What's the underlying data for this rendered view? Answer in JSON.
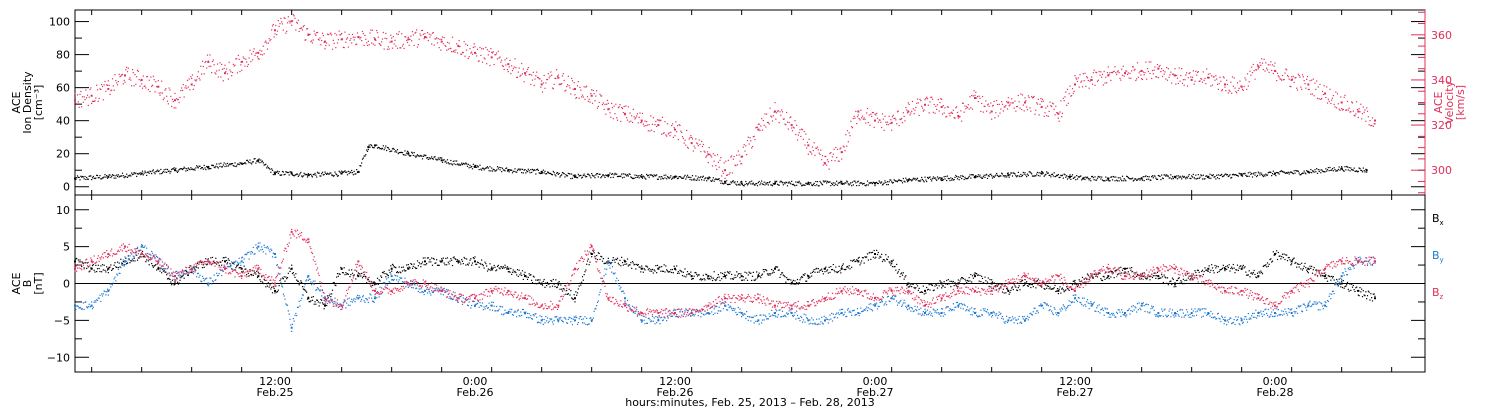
{
  "figure": {
    "xlabel": "hours:minutes, Feb. 25, 2013 – Feb. 28, 2013",
    "x_range_hours": [
      0,
      81
    ],
    "x_ticks": [
      {
        "hours": 12,
        "time": "12:00",
        "date": "Feb.25"
      },
      {
        "hours": 24,
        "time": "0:00",
        "date": "Feb.26"
      },
      {
        "hours": 36,
        "time": "12:00",
        "date": "Feb.26"
      },
      {
        "hours": 48,
        "time": "0:00",
        "date": "Feb.27"
      },
      {
        "hours": 60,
        "time": "12:00",
        "date": "Feb.27"
      },
      {
        "hours": 72,
        "time": "0:00",
        "date": "Feb.28"
      }
    ]
  },
  "chart_data": [
    {
      "type": "scatter",
      "panel": "plasma",
      "ylabel_lines": [
        "ACE",
        "Ion Density",
        "[cm⁻³]"
      ],
      "y2label_lines": [
        "ACE",
        "Velocity",
        "[km/s]"
      ],
      "ylim": [
        -5,
        107
      ],
      "yticks": [
        0,
        20,
        40,
        60,
        80,
        100
      ],
      "y2lim": [
        289,
        371
      ],
      "y2ticks": [
        300,
        320,
        340,
        360
      ],
      "series": [
        {
          "name": "Ion Density",
          "axis": "left",
          "color": "#000000",
          "x": [
            0,
            2,
            4,
            6,
            8,
            10,
            11,
            12,
            13,
            14,
            16,
            17,
            17.6,
            18,
            20,
            22,
            24,
            26,
            28,
            30,
            32,
            34,
            36,
            38,
            39,
            40,
            42,
            44,
            46,
            48,
            50,
            52,
            54,
            56,
            58,
            59.7,
            60.5,
            62,
            64,
            66,
            68,
            70,
            72,
            74,
            76,
            77.5
          ],
          "values": [
            5,
            6,
            8,
            10,
            12,
            14,
            16,
            8,
            8,
            7,
            8,
            9,
            24,
            25,
            20,
            16,
            12,
            10,
            9,
            6,
            7,
            6,
            6,
            5,
            3,
            2,
            2,
            2,
            2,
            2,
            4,
            5,
            6,
            7,
            8,
            6,
            5,
            5,
            5,
            6,
            6,
            7,
            8,
            9,
            11,
            10
          ]
        },
        {
          "name": "Velocity",
          "axis": "right",
          "color": "#e0305a",
          "x": [
            0,
            1,
            2,
            3,
            4,
            5,
            6,
            7,
            8,
            9,
            10,
            11,
            12,
            13,
            14,
            15,
            16,
            17,
            18,
            19,
            20,
            21,
            22,
            23,
            24,
            25,
            26,
            27,
            28,
            29,
            30,
            31,
            32,
            33,
            34,
            35,
            36,
            37,
            38,
            39,
            40,
            41,
            42,
            43,
            44,
            45,
            46,
            47,
            48,
            49,
            50,
            51,
            52,
            53,
            54,
            55,
            56,
            57,
            58,
            59,
            60,
            61,
            62,
            63,
            64,
            65,
            66,
            67,
            68,
            69,
            70,
            71,
            72,
            73,
            74,
            75,
            76,
            77,
            78
          ],
          "values": [
            331,
            333,
            336,
            342,
            340,
            337,
            331,
            338,
            348,
            343,
            348,
            352,
            362,
            366,
            360,
            357,
            358,
            359,
            358,
            357,
            358,
            359,
            357,
            355,
            352,
            350,
            347,
            343,
            338,
            341,
            336,
            333,
            327,
            325,
            322,
            320,
            318,
            312,
            307,
            300,
            306,
            318,
            326,
            320,
            311,
            303,
            308,
            326,
            322,
            321,
            326,
            329,
            328,
            324,
            332,
            326,
            330,
            330,
            328,
            325,
            338,
            340,
            342,
            343,
            344,
            345,
            342,
            340,
            341,
            338,
            337,
            346,
            344,
            340,
            338,
            334,
            330,
            326,
            322
          ]
        }
      ]
    },
    {
      "type": "scatter",
      "panel": "magnetic",
      "ylabel_lines": [
        "ACE",
        "B",
        "[nT]"
      ],
      "ylim": [
        -12,
        12
      ],
      "yticks": [
        -10,
        -5,
        0,
        5,
        10
      ],
      "legend_position": "right",
      "series": [
        {
          "name": "Bx",
          "label_main": "B",
          "label_sub": "x",
          "color": "#000000",
          "x": [
            0,
            1,
            2,
            3,
            4,
            5,
            6,
            7,
            8,
            9,
            10,
            11,
            12,
            13,
            14,
            15,
            16,
            17,
            18,
            19,
            20,
            21,
            22,
            23,
            24,
            25,
            26,
            27,
            28,
            29,
            30,
            31,
            32,
            33,
            34,
            35,
            36,
            37,
            38,
            39,
            40,
            41,
            42,
            43,
            44,
            45,
            46,
            47,
            48,
            49,
            50,
            51,
            52,
            53,
            54,
            55,
            56,
            57,
            58,
            59,
            60,
            61,
            62,
            63,
            64,
            65,
            66,
            67,
            68,
            69,
            70,
            71,
            72,
            73,
            74,
            75,
            76,
            77,
            78
          ],
          "values": [
            3,
            2,
            2,
            3,
            4,
            2,
            0,
            2,
            3,
            3,
            2,
            1,
            -1,
            2,
            -2,
            -3,
            2,
            1,
            0,
            2,
            2,
            3,
            3,
            3,
            3,
            2,
            2,
            1,
            0,
            0,
            -2,
            4,
            3,
            3,
            2,
            2,
            2,
            1,
            1,
            1,
            1,
            1,
            2,
            0,
            1,
            2,
            2,
            3,
            4,
            3,
            0,
            -1,
            0,
            0,
            1,
            0,
            -1,
            0,
            0,
            -1,
            0,
            1,
            1,
            2,
            1,
            1,
            0,
            1,
            2,
            2,
            2,
            1,
            4,
            3,
            2,
            1,
            0,
            -1,
            -2
          ]
        },
        {
          "name": "By",
          "label_main": "B",
          "label_sub": "y",
          "color": "#1e78d2",
          "x": [
            0,
            1,
            2,
            3,
            4,
            5,
            6,
            7,
            8,
            9,
            10,
            11,
            12,
            13,
            14,
            15,
            16,
            17,
            18,
            19,
            20,
            21,
            22,
            23,
            24,
            25,
            26,
            27,
            28,
            29,
            30,
            31,
            32,
            33,
            34,
            35,
            36,
            37,
            38,
            39,
            40,
            41,
            42,
            43,
            44,
            45,
            46,
            47,
            48,
            49,
            50,
            51,
            52,
            53,
            54,
            55,
            56,
            57,
            58,
            59,
            60,
            61,
            62,
            63,
            64,
            65,
            66,
            67,
            68,
            69,
            70,
            71,
            72,
            73,
            74,
            75,
            76,
            77,
            78
          ],
          "values": [
            -3,
            -3,
            -1,
            3,
            5,
            3,
            1,
            2,
            0,
            2,
            3,
            5,
            4,
            -6,
            1,
            -2,
            -3,
            -2,
            -2,
            1,
            0,
            -1,
            -1,
            -2,
            -3,
            -3,
            -4,
            -4,
            -5,
            -5,
            -5,
            -5,
            3,
            -2,
            -5,
            -5,
            -4,
            -4,
            -4,
            -3,
            -4,
            -5,
            -4,
            -4,
            -5,
            -5,
            -4,
            -4,
            -3,
            -2,
            -3,
            -4,
            -4,
            -3,
            -4,
            -4,
            -5,
            -5,
            -3,
            -4,
            -2,
            -3,
            -4,
            -4,
            -3,
            -4,
            -4,
            -4,
            -4,
            -5,
            -5,
            -4,
            -4,
            -4,
            -3,
            -3,
            1,
            3,
            3
          ]
        },
        {
          "name": "Bz",
          "label_main": "B",
          "label_sub": "z",
          "color": "#e0305a",
          "x": [
            0,
            1,
            2,
            3,
            4,
            5,
            6,
            7,
            8,
            9,
            10,
            11,
            12,
            13,
            14,
            15,
            16,
            17,
            18,
            19,
            20,
            21,
            22,
            23,
            24,
            25,
            26,
            27,
            28,
            29,
            30,
            31,
            32,
            33,
            34,
            35,
            36,
            37,
            38,
            39,
            40,
            41,
            42,
            43,
            44,
            45,
            46,
            47,
            48,
            49,
            50,
            51,
            52,
            53,
            54,
            55,
            56,
            57,
            58,
            59,
            60,
            61,
            62,
            63,
            64,
            65,
            66,
            67,
            68,
            69,
            70,
            71,
            72,
            73,
            74,
            75,
            76,
            77,
            78
          ],
          "values": [
            2,
            3,
            4,
            5,
            4,
            3,
            1,
            2,
            3,
            2,
            1,
            2,
            0,
            7,
            6,
            -2,
            -3,
            3,
            -1,
            -1,
            0,
            0,
            -1,
            -2,
            -2,
            -1,
            -1,
            -2,
            -3,
            -3,
            2,
            5,
            -2,
            -3,
            -4,
            -4,
            -4,
            -4,
            -3,
            -2,
            -2,
            -2,
            -3,
            -3,
            -3,
            -2,
            -1,
            -1,
            -2,
            -1,
            -1,
            -3,
            -2,
            -1,
            -1,
            -1,
            0,
            1,
            0,
            1,
            -1,
            1,
            2,
            1,
            1,
            2,
            2,
            1,
            0,
            -1,
            -1,
            -2,
            -3,
            -1,
            0,
            2,
            3,
            3,
            3
          ]
        }
      ]
    }
  ]
}
